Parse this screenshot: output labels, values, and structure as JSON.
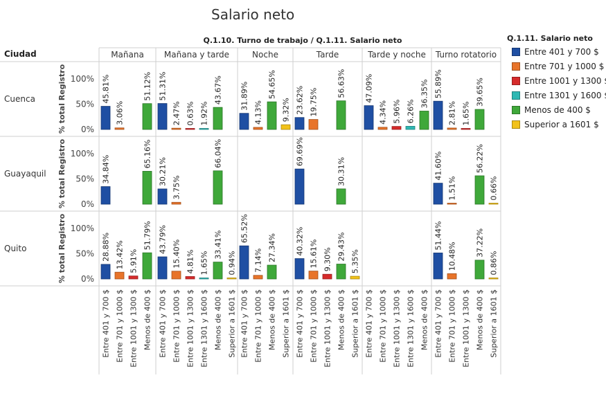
{
  "title": "Salario neto",
  "legend": {
    "title": "Q.1.11. Salario neto",
    "items": [
      {
        "label": "Entre 401 y 700 $",
        "color": "#1f4fa3"
      },
      {
        "label": "Entre 701 y 1000 $",
        "color": "#e8742a"
      },
      {
        "label": "Entre 1001 y 1300 $",
        "color": "#d62b2b"
      },
      {
        "label": "Entre 1301 y 1600 $",
        "color": "#2fb8b3"
      },
      {
        "label": "Menos de 400 $",
        "color": "#3fa83a"
      },
      {
        "label": "Superior a 1601 $",
        "color": "#f2c21a"
      }
    ]
  },
  "chart_data": {
    "type": "bar",
    "header": "Q.1.10. Turno de trabajo  /  Q.1.11. Salario neto",
    "row_dimension": "Ciudad",
    "ylabel": "% total Registro",
    "yticks": [
      "100%",
      "50%",
      "0%"
    ],
    "ylim": [
      0,
      100
    ],
    "columns": [
      {
        "name": "Mañana",
        "categories": [
          "Entre 401 y 700 $",
          "Entre 701 y 1000 $",
          "Entre 1001 y 1300 $",
          "Menos de 400 $"
        ]
      },
      {
        "name": "Mañana y tarde",
        "categories": [
          "Entre 401 y 700 $",
          "Entre 701 y 1000 $",
          "Entre 1001 y 1300 $",
          "Entre 1301 y 1600 $",
          "Menos de 400 $",
          "Superior a 1601 $"
        ]
      },
      {
        "name": "Noche",
        "categories": [
          "Entre 401 y 700 $",
          "Entre 701 y 1000 $",
          "Menos de 400 $",
          "Superior a 1601 $"
        ]
      },
      {
        "name": "Tarde",
        "categories": [
          "Entre 401 y 700 $",
          "Entre 701 y 1000 $",
          "Entre 1001 y 1300 $",
          "Menos de 400 $",
          "Superior a 1601 $"
        ]
      },
      {
        "name": "Tarde y noche",
        "categories": [
          "Entre 401 y 700 $",
          "Entre 701 y 1000 $",
          "Entre 1001 y 1300 $",
          "Entre 1301 y 1600 $",
          "Menos de 400 $"
        ]
      },
      {
        "name": "Turno rotatorio",
        "categories": [
          "Entre 401 y 700 $",
          "Entre 701 y 1000 $",
          "Entre 1001 y 1300 $",
          "Menos de 400 $",
          "Superior a 1601 $"
        ]
      }
    ],
    "rows": [
      {
        "name": "Cuenca",
        "values": [
          [
            45.81,
            3.06,
            null,
            51.12
          ],
          [
            51.31,
            2.47,
            0.63,
            1.92,
            43.67,
            null
          ],
          [
            31.89,
            4.13,
            54.65,
            9.32
          ],
          [
            23.62,
            19.75,
            null,
            56.63,
            null
          ],
          [
            47.09,
            4.34,
            5.96,
            6.26,
            36.35
          ],
          [
            55.89,
            2.81,
            1.65,
            39.65,
            null
          ]
        ]
      },
      {
        "name": "Guayaquil",
        "values": [
          [
            34.84,
            null,
            null,
            65.16
          ],
          [
            30.21,
            3.75,
            null,
            null,
            66.04,
            null
          ],
          [
            null,
            null,
            null,
            null
          ],
          [
            69.69,
            null,
            null,
            30.31,
            null
          ],
          [
            null,
            null,
            null,
            null,
            null
          ],
          [
            41.6,
            1.51,
            null,
            56.22,
            0.66
          ]
        ]
      },
      {
        "name": "Quito",
        "values": [
          [
            28.88,
            13.42,
            5.91,
            51.79
          ],
          [
            43.79,
            15.4,
            4.81,
            1.65,
            33.41,
            0.94
          ],
          [
            65.52,
            7.14,
            27.34,
            null
          ],
          [
            40.32,
            15.61,
            9.3,
            29.43,
            5.35
          ],
          [
            null,
            null,
            null,
            null,
            null
          ],
          [
            51.44,
            10.48,
            null,
            37.22,
            0.86
          ]
        ]
      }
    ]
  }
}
